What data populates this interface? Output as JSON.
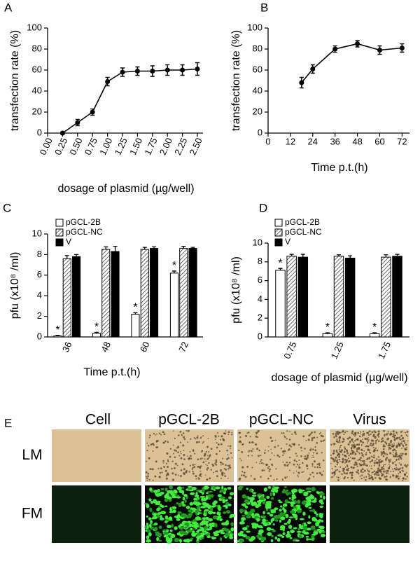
{
  "chart_data": [
    {
      "type": "line",
      "panel_label": "A",
      "xlabel": "dosage of plasmid (µg/well)",
      "ylabel": "transfection rate (%)",
      "categories": [
        "0.00",
        "0.25",
        "0.50",
        "0.75",
        "1.00",
        "1.25",
        "1.50",
        "1.75",
        "2.00",
        "2.25",
        "2.50"
      ],
      "values": [
        null,
        0,
        10,
        20,
        49,
        58,
        59,
        59,
        60,
        60,
        61
      ],
      "errors": [
        null,
        1,
        3,
        3,
        4,
        4,
        4,
        5,
        5,
        5,
        6
      ],
      "color": "#000000",
      "ylim": [
        0,
        100
      ],
      "yticks": [
        0,
        20,
        40,
        60,
        80,
        100
      ]
    },
    {
      "type": "line",
      "panel_label": "B",
      "xlabel": "Time p.t.(h)",
      "ylabel": "transfection rate (%)",
      "x": [
        18,
        24,
        36,
        48,
        60,
        72
      ],
      "values": [
        48,
        61,
        80,
        85,
        79,
        81
      ],
      "errors": [
        5,
        4,
        3,
        3,
        4,
        4
      ],
      "color": "#000000",
      "xlim": [
        0,
        76
      ],
      "xticks": [
        0,
        12,
        24,
        36,
        48,
        60,
        72
      ],
      "ylim": [
        0,
        100
      ],
      "yticks": [
        0,
        20,
        40,
        60,
        80,
        100
      ]
    },
    {
      "type": "bar",
      "panel_label": "C",
      "xlabel": "Time p.t.(h)",
      "ylabel": "pfu (x10⁸ /ml)",
      "categories": [
        "36",
        "48",
        "60",
        "72"
      ],
      "series": [
        {
          "name": "pGCL-2B",
          "color": "#ffffff",
          "values": [
            0.1,
            0.35,
            2.2,
            6.2
          ],
          "errors": [
            0.05,
            0.1,
            0.15,
            0.2
          ],
          "annotations": [
            "*",
            "*",
            "*",
            "*"
          ]
        },
        {
          "name": "pGCL-NC",
          "color": "#bbbbbb",
          "hatch": true,
          "values": [
            7.6,
            8.5,
            8.5,
            8.6
          ],
          "errors": [
            0.3,
            0.25,
            0.2,
            0.2
          ]
        },
        {
          "name": "V",
          "color": "#000000",
          "values": [
            7.8,
            8.3,
            8.6,
            8.6
          ],
          "errors": [
            0.2,
            0.5,
            0.15,
            0.1
          ]
        }
      ],
      "ylim": [
        0,
        10
      ],
      "yticks": [
        0,
        2,
        4,
        6,
        8,
        10
      ]
    },
    {
      "type": "bar",
      "panel_label": "D",
      "xlabel": "dosage of plasmid (µg/well)",
      "ylabel": "pfu (x10⁸ /ml)",
      "categories": [
        "0.75",
        "1.25",
        "1.75"
      ],
      "series": [
        {
          "name": "pGCL-2B",
          "color": "#ffffff",
          "values": [
            7.1,
            0.35,
            0.35
          ],
          "errors": [
            0.2,
            0.1,
            0.1
          ],
          "annotations": [
            "*",
            "*",
            "*"
          ]
        },
        {
          "name": "pGCL-NC",
          "color": "#bbbbbb",
          "hatch": true,
          "values": [
            8.6,
            8.6,
            8.5
          ],
          "errors": [
            0.2,
            0.15,
            0.25
          ]
        },
        {
          "name": "V",
          "color": "#000000",
          "values": [
            8.5,
            8.4,
            8.6
          ],
          "errors": [
            0.3,
            0.25,
            0.2
          ]
        }
      ],
      "ylim": [
        0,
        10
      ],
      "yticks": [
        0,
        2,
        4,
        6,
        8,
        10
      ]
    }
  ],
  "panel_e": {
    "label": "E",
    "columns": [
      "Cell",
      "pGCL-2B",
      "pGCL-NC",
      "Virus"
    ],
    "rows": [
      "LM",
      "FM"
    ]
  }
}
